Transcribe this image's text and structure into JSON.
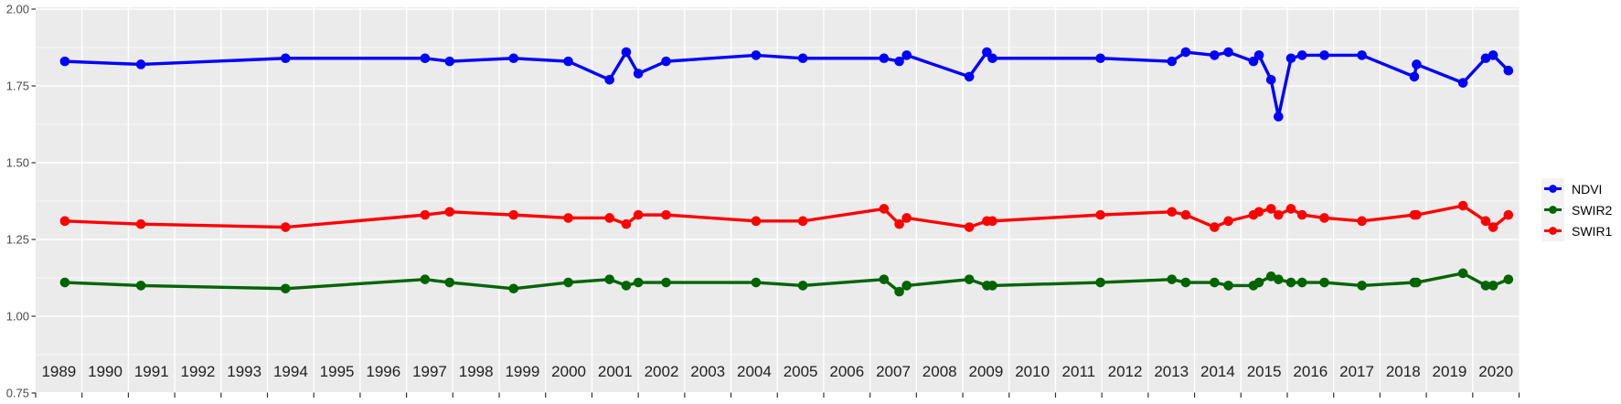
{
  "figure": {
    "kind": "time-series line chart (ggplot-style)",
    "panel_bg": "#EBEBEB",
    "grid_major_color": "#FFFFFF",
    "grid_minor_color": "#FFFFFF",
    "axis_tick_color": "#333333",
    "y_label_color": "#4a4a4a",
    "x_label_color": "#1f1f1f"
  },
  "y_axis": {
    "labels": [
      "2.00",
      "1.75",
      "1.50",
      "1.25",
      "1.00",
      "0.75"
    ],
    "values": [
      2.0,
      1.75,
      1.5,
      1.25,
      1.0,
      0.75
    ],
    "minor_values": [
      1.875,
      1.625,
      1.375,
      1.125,
      0.875
    ]
  },
  "x_axis": {
    "years": [
      "1989",
      "1990",
      "1991",
      "1992",
      "1993",
      "1994",
      "1995",
      "1996",
      "1997",
      "1998",
      "1999",
      "2000",
      "2001",
      "2002",
      "2003",
      "2004",
      "2005",
      "2006",
      "2007",
      "2008",
      "2009",
      "2010",
      "2011",
      "2012",
      "2013",
      "2014",
      "2015",
      "2016",
      "2017",
      "2018",
      "2019",
      "2020"
    ]
  },
  "legend": {
    "items": [
      {
        "label": "NDVI",
        "color": "#0000FF"
      },
      {
        "label": "SWIR2",
        "color": "#006400"
      },
      {
        "label": "SWIR1",
        "color": "#FF0000"
      }
    ]
  },
  "chart_data": {
    "type": "line",
    "title": "",
    "xlabel": "",
    "ylabel": "",
    "xlim": [
      1989,
      2021
    ],
    "ylim": [
      0.75,
      2.0
    ],
    "grid": "major and minor horizontal white gridlines, vertical white gridlines at year boundaries, on grey panel",
    "legend_position": "right",
    "x": [
      1989.63,
      1991.27,
      1994.39,
      1997.4,
      1997.93,
      1999.31,
      2000.49,
      2001.38,
      2001.74,
      2002.0,
      2002.6,
      2004.54,
      2005.55,
      2007.3,
      2007.63,
      2007.79,
      2009.14,
      2009.52,
      2009.64,
      2011.97,
      2013.51,
      2013.81,
      2014.43,
      2014.73,
      2015.27,
      2015.39,
      2015.65,
      2015.81,
      2016.08,
      2016.32,
      2016.8,
      2017.61,
      2018.74,
      2018.79,
      2019.79,
      2020.28,
      2020.44,
      2020.77
    ],
    "series": [
      {
        "name": "NDVI",
        "color": "#0000FF",
        "values": [
          1.83,
          1.82,
          1.84,
          1.84,
          1.83,
          1.84,
          1.83,
          1.77,
          1.86,
          1.79,
          1.83,
          1.85,
          1.84,
          1.84,
          1.83,
          1.85,
          1.78,
          1.86,
          1.84,
          1.84,
          1.83,
          1.86,
          1.85,
          1.86,
          1.83,
          1.85,
          1.77,
          1.65,
          1.84,
          1.85,
          1.85,
          1.85,
          1.78,
          1.82,
          1.76,
          1.84,
          1.85,
          1.8
        ]
      },
      {
        "name": "SWIR2",
        "color": "#006400",
        "values": [
          1.11,
          1.1,
          1.09,
          1.12,
          1.11,
          1.09,
          1.11,
          1.12,
          1.1,
          1.11,
          1.11,
          1.11,
          1.1,
          1.12,
          1.08,
          1.1,
          1.12,
          1.1,
          1.1,
          1.11,
          1.12,
          1.11,
          1.11,
          1.1,
          1.1,
          1.11,
          1.13,
          1.12,
          1.11,
          1.11,
          1.11,
          1.1,
          1.11,
          1.11,
          1.14,
          1.1,
          1.1,
          1.12
        ]
      },
      {
        "name": "SWIR1",
        "color": "#FF0000",
        "values": [
          1.31,
          1.3,
          1.29,
          1.33,
          1.34,
          1.33,
          1.32,
          1.32,
          1.3,
          1.33,
          1.33,
          1.31,
          1.31,
          1.35,
          1.3,
          1.32,
          1.29,
          1.31,
          1.31,
          1.33,
          1.34,
          1.33,
          1.29,
          1.31,
          1.33,
          1.34,
          1.35,
          1.33,
          1.35,
          1.33,
          1.32,
          1.31,
          1.33,
          1.33,
          1.36,
          1.31,
          1.29,
          1.33
        ]
      }
    ]
  }
}
